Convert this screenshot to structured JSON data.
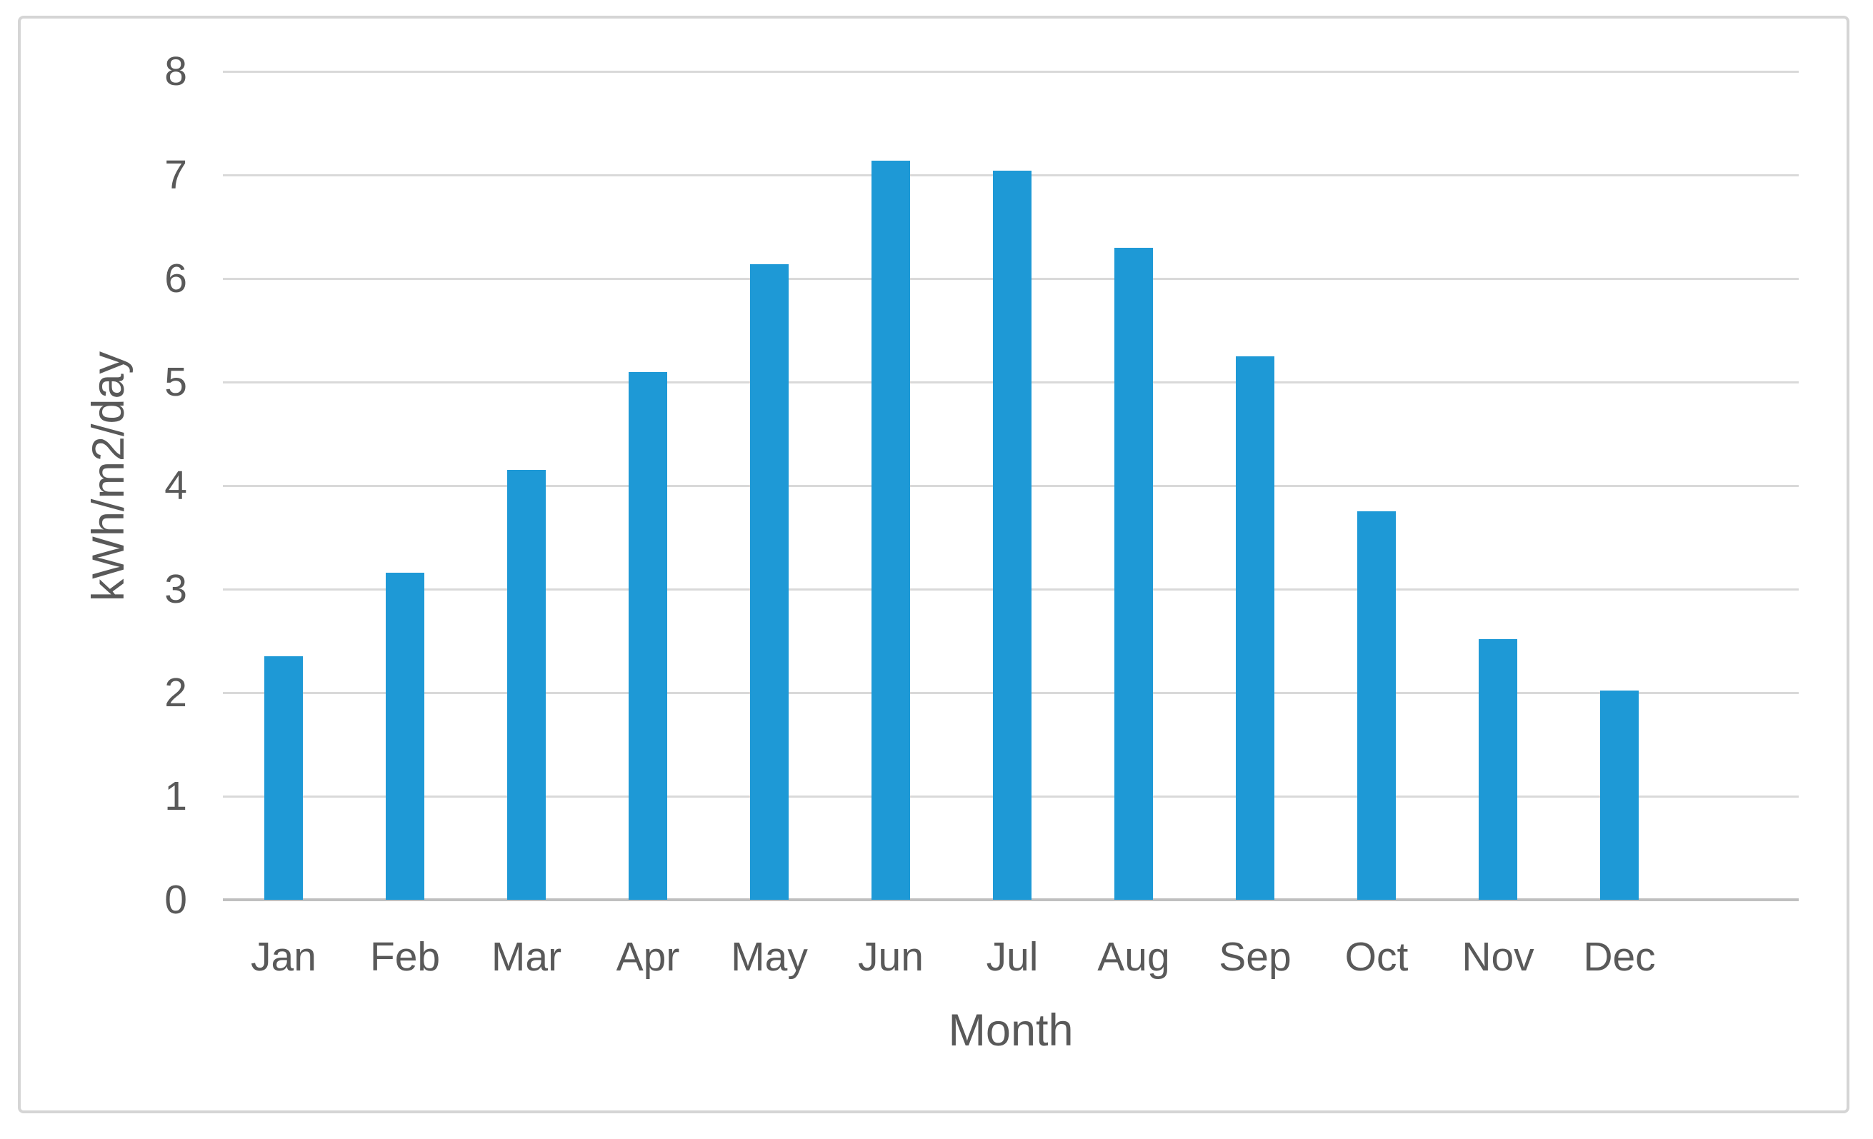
{
  "figure": {
    "background": "#FFFFFF",
    "frame_border_color": "#D5D5D5"
  },
  "chart_data": {
    "type": "bar",
    "xlabel": "Month",
    "ylabel": "kWh/m2/day",
    "categories": [
      "Jan",
      "Feb",
      "Mar",
      "Apr",
      "May",
      "Jun",
      "Jul",
      "Aug",
      "Sep",
      "Oct",
      "Nov",
      "Dec"
    ],
    "values": [
      2.35,
      3.16,
      4.15,
      5.1,
      6.14,
      7.14,
      7.04,
      6.3,
      5.25,
      3.75,
      2.52,
      2.02
    ],
    "ylim": [
      0,
      8
    ],
    "y_ticks": [
      0,
      1,
      2,
      3,
      4,
      5,
      6,
      7,
      8
    ],
    "grid": "horizontal",
    "legend": "none",
    "bar_color": "#1E99D6",
    "gridline_color": "#D9D9D9",
    "axis_line_color": "#BFBFBF",
    "text_color": "#595959"
  }
}
